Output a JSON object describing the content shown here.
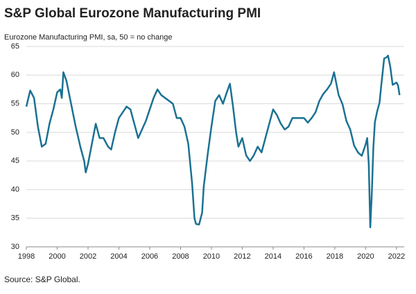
{
  "chart_data": {
    "type": "line",
    "title": "S&P Global Eurozone Manufacturing PMI",
    "subtitle": "Eurozone Manufacturing PMI, sa, 50 = no change",
    "source": "Source: S&P Global.",
    "x": [
      1998.0,
      1998.25,
      1998.5,
      1998.75,
      1999.0,
      1999.25,
      1999.5,
      1999.75,
      2000.0,
      2000.2,
      2000.3,
      2000.4,
      2000.6,
      2000.9,
      2001.2,
      2001.5,
      2001.75,
      2001.85,
      2002.0,
      2002.25,
      2002.5,
      2002.75,
      2003.0,
      2003.3,
      2003.5,
      2003.75,
      2004.0,
      2004.25,
      2004.5,
      2004.75,
      2005.0,
      2005.25,
      2005.5,
      2005.75,
      2006.0,
      2006.25,
      2006.5,
      2006.75,
      2007.0,
      2007.25,
      2007.5,
      2007.75,
      2008.0,
      2008.25,
      2008.5,
      2008.75,
      2008.9,
      2009.0,
      2009.2,
      2009.4,
      2009.5,
      2009.75,
      2010.0,
      2010.25,
      2010.5,
      2010.75,
      2011.0,
      2011.2,
      2011.4,
      2011.6,
      2011.75,
      2012.0,
      2012.25,
      2012.5,
      2012.75,
      2013.0,
      2013.25,
      2013.5,
      2013.75,
      2014.0,
      2014.25,
      2014.5,
      2014.75,
      2015.0,
      2015.25,
      2015.5,
      2015.75,
      2016.0,
      2016.25,
      2016.5,
      2016.75,
      2017.0,
      2017.25,
      2017.5,
      2017.75,
      2017.95,
      2018.25,
      2018.5,
      2018.75,
      2019.0,
      2019.25,
      2019.5,
      2019.75,
      2020.0,
      2020.1,
      2020.2,
      2020.3,
      2020.4,
      2020.5,
      2020.6,
      2020.75,
      2020.9,
      2021.0,
      2021.2,
      2021.35,
      2021.45,
      2021.6,
      2021.75,
      2022.0,
      2022.1,
      2022.2
    ],
    "series": [
      {
        "color": "#1b7192",
        "values": [
          54.5,
          57.3,
          56,
          51,
          47.5,
          48,
          51.5,
          54,
          57,
          57.5,
          56,
          60.5,
          59,
          55,
          51,
          47.5,
          45,
          43,
          44.5,
          48,
          51.5,
          49,
          49,
          47.5,
          47,
          50,
          52.5,
          53.5,
          54.5,
          54,
          51.5,
          49,
          50.5,
          52,
          54,
          56,
          57.5,
          56.5,
          56,
          55.5,
          55,
          52.5,
          52.5,
          51,
          48,
          41,
          35,
          34,
          33.9,
          36,
          40.5,
          46,
          51,
          55.5,
          56.5,
          55,
          57,
          58.5,
          54.5,
          50,
          47.5,
          49,
          46,
          45,
          46,
          47.5,
          46.5,
          49,
          51.5,
          54,
          53,
          51.5,
          50.5,
          51,
          52.5,
          52.5,
          52.5,
          52.5,
          51.7,
          52.5,
          53.5,
          55.5,
          56.7,
          57.5,
          58.5,
          60.5,
          56.5,
          54.9,
          52,
          50.5,
          47.7,
          46.5,
          45.9,
          47.9,
          49,
          44.5,
          33.4,
          39.4,
          47.4,
          51.8,
          53.7,
          55.2,
          57.9,
          62.9,
          63.1,
          63.4,
          61.4,
          58.3,
          58.7,
          58.2,
          56.5
        ]
      }
    ],
    "xlim": [
      1998,
      2022.5
    ],
    "xticks": [
      1998,
      2000,
      2002,
      2004,
      2006,
      2008,
      2010,
      2012,
      2014,
      2016,
      2018,
      2020,
      2022
    ],
    "ylim": [
      30,
      65
    ],
    "yticks": [
      30,
      35,
      40,
      45,
      50,
      55,
      60,
      65
    ],
    "grid": true
  }
}
